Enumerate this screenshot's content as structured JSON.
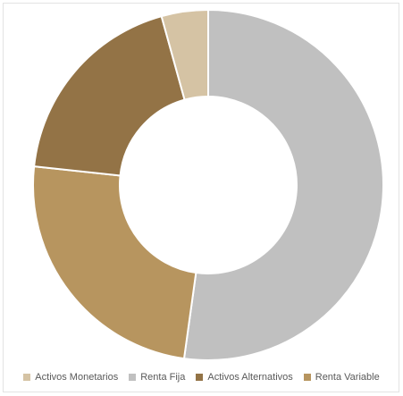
{
  "chart_data": {
    "type": "pie",
    "donut": true,
    "title": "",
    "categories": [
      "Activos Monetarios",
      "Renta Fija",
      "Activos Alternativos",
      "Renta Variable"
    ],
    "values": [
      4.3,
      52.2,
      19.0,
      24.5
    ],
    "colors": [
      "#d5c3a4",
      "#c0c0c0",
      "#937346",
      "#b7955f"
    ],
    "slice_order_clockwise_from_top": [
      "Renta Fija",
      "Renta Variable",
      "Activos Alternativos",
      "Activos Monetarios"
    ],
    "legend_position": "bottom"
  }
}
